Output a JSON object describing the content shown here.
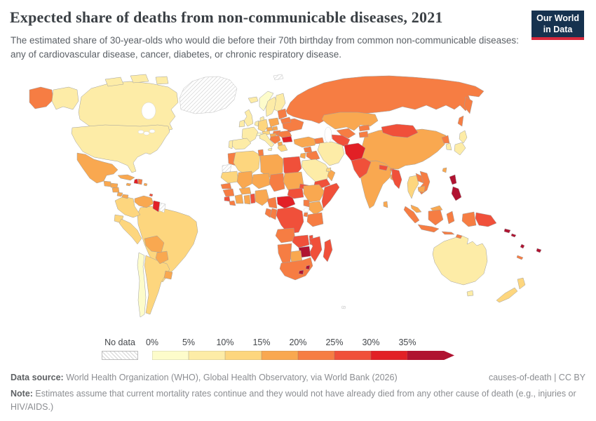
{
  "header": {
    "title": "Expected share of deaths from non-communicable diseases, 2021",
    "logo": [
      "Our World",
      "in Data"
    ],
    "brand_navy": "#16324f",
    "brand_red": "#d8293c"
  },
  "subtitle": "The estimated share of 30-year-olds who would die before their 70th birthday from common non-communicable diseases: any of cardiovascular disease, cancer, diabetes, or chronic respiratory disease.",
  "legend": {
    "no_data_label": "No data",
    "tick_labels": [
      "0%",
      "5%",
      "10%",
      "15%",
      "20%",
      "25%",
      "30%",
      "35%"
    ]
  },
  "footer": {
    "source_label": "Data source:",
    "source_text": " World Health Organization (WHO), Global Health Observatory, via World Bank (2026)",
    "attribution": "causes-of-death | CC BY",
    "note_label": "Note:",
    "note_text": " Estimates assume that current mortality rates continue and they would not have already died from any other cause of death (e.g., injuries or HIV/AIDS.)"
  },
  "chart_data": {
    "type": "choropleth-map",
    "title": "Expected share of deaths from non-communicable diseases, 2021",
    "unit": "%",
    "legend_position": "bottom",
    "no_data": {
      "label": "No data",
      "style": "diagonal-hatch"
    },
    "bins": [
      {
        "label": "0-5%",
        "color": "#fdfccb"
      },
      {
        "label": "5-10%",
        "color": "#fdeca7"
      },
      {
        "label": "10-15%",
        "color": "#fdd67e"
      },
      {
        "label": "15-20%",
        "color": "#f9a850"
      },
      {
        "label": "20-25%",
        "color": "#f67d43"
      },
      {
        "label": "25-30%",
        "color": "#f0503a"
      },
      {
        "label": "30-35%",
        "color": "#e22026"
      },
      {
        "label": "35%+",
        "color": "#b01331"
      }
    ],
    "countries": [
      {
        "name": "Russia",
        "bin": 4
      },
      {
        "name": "Canada",
        "bin": 1
      },
      {
        "name": "United States",
        "bin": 1
      },
      {
        "name": "Greenland",
        "bin": "no-data"
      },
      {
        "name": "Svalbard",
        "bin": "no-data"
      },
      {
        "name": "Brazil",
        "bin": 2
      },
      {
        "name": "China",
        "bin": 3
      },
      {
        "name": "Australia",
        "bin": 1
      },
      {
        "name": "India",
        "bin": 3
      },
      {
        "name": "Kazakhstan",
        "bin": 3
      },
      {
        "name": "Mexico",
        "bin": 3
      },
      {
        "name": "Argentina",
        "bin": 2
      },
      {
        "name": "Chile",
        "bin": 0
      },
      {
        "name": "Colombia",
        "bin": 2
      },
      {
        "name": "Venezuela",
        "bin": 3
      },
      {
        "name": "Guyana",
        "bin": 6
      },
      {
        "name": "Suriname",
        "bin": "no-data"
      },
      {
        "name": "Ecuador",
        "bin": 2
      },
      {
        "name": "Peru",
        "bin": 2
      },
      {
        "name": "Bolivia",
        "bin": 3
      },
      {
        "name": "Paraguay",
        "bin": 3
      },
      {
        "name": "Uruguay",
        "bin": 3
      },
      {
        "name": "Guatemala",
        "bin": 3
      },
      {
        "name": "Honduras",
        "bin": 3
      },
      {
        "name": "Nicaragua",
        "bin": 3
      },
      {
        "name": "Costa Rica",
        "bin": 3
      },
      {
        "name": "Panama",
        "bin": 3
      },
      {
        "name": "Cuba",
        "bin": 3
      },
      {
        "name": "Jamaica",
        "bin": 3
      },
      {
        "name": "Haiti",
        "bin": 6
      },
      {
        "name": "Dominican Republic",
        "bin": 4
      },
      {
        "name": "Puerto Rico",
        "bin": 3
      },
      {
        "name": "Trinidad and Tobago",
        "bin": 5
      },
      {
        "name": "Iceland",
        "bin": 1
      },
      {
        "name": "United Kingdom",
        "bin": 1
      },
      {
        "name": "Ireland",
        "bin": 1
      },
      {
        "name": "Norway",
        "bin": 0
      },
      {
        "name": "Sweden",
        "bin": 1
      },
      {
        "name": "Finland",
        "bin": 1
      },
      {
        "name": "Denmark",
        "bin": 1
      },
      {
        "name": "Netherlands",
        "bin": 1
      },
      {
        "name": "France",
        "bin": 1
      },
      {
        "name": "Switzerland",
        "bin": 0
      },
      {
        "name": "Germany",
        "bin": 2
      },
      {
        "name": "Austria",
        "bin": 2
      },
      {
        "name": "Czechia",
        "bin": 3
      },
      {
        "name": "Slovakia",
        "bin": 3
      },
      {
        "name": "Poland",
        "bin": 3
      },
      {
        "name": "Hungary",
        "bin": 4
      },
      {
        "name": "Italy",
        "bin": 1
      },
      {
        "name": "Spain",
        "bin": 1
      },
      {
        "name": "Portugal",
        "bin": 1
      },
      {
        "name": "Croatia",
        "bin": 3
      },
      {
        "name": "Serbia",
        "bin": 4
      },
      {
        "name": "Albania",
        "bin": 3
      },
      {
        "name": "Greece",
        "bin": 2
      },
      {
        "name": "Bulgaria",
        "bin": 6
      },
      {
        "name": "Romania",
        "bin": 4
      },
      {
        "name": "Moldova",
        "bin": 5
      },
      {
        "name": "Ukraine",
        "bin": 4
      },
      {
        "name": "Belarus",
        "bin": 4
      },
      {
        "name": "Lithuania",
        "bin": 4
      },
      {
        "name": "Turkey",
        "bin": 3
      },
      {
        "name": "Azerbaijan",
        "bin": 4
      },
      {
        "name": "Uzbekistan",
        "bin": 4
      },
      {
        "name": "Turkmenistan",
        "bin": 5
      },
      {
        "name": "Kyrgyzstan",
        "bin": 4
      },
      {
        "name": "Tajikistan",
        "bin": 4
      },
      {
        "name": "Mongolia",
        "bin": 5
      },
      {
        "name": "North Korea",
        "bin": 4
      },
      {
        "name": "South Korea",
        "bin": 1
      },
      {
        "name": "Japan",
        "bin": 1
      },
      {
        "name": "Taiwan",
        "bin": 3
      },
      {
        "name": "Iran",
        "bin": 1
      },
      {
        "name": "Iraq",
        "bin": 4
      },
      {
        "name": "Syria",
        "bin": 4
      },
      {
        "name": "Jordan",
        "bin": 3
      },
      {
        "name": "Saudi Arabia",
        "bin": 1
      },
      {
        "name": "Yemen",
        "bin": 5
      },
      {
        "name": "Oman",
        "bin": 3
      },
      {
        "name": "United Arab Emirates",
        "bin": 2
      },
      {
        "name": "Afghanistan",
        "bin": 6
      },
      {
        "name": "Pakistan",
        "bin": 5
      },
      {
        "name": "Nepal",
        "bin": 5
      },
      {
        "name": "Bhutan",
        "bin": 4
      },
      {
        "name": "Bangladesh",
        "bin": 3
      },
      {
        "name": "Sri Lanka",
        "bin": 3
      },
      {
        "name": "Myanmar",
        "bin": 5
      },
      {
        "name": "Thailand",
        "bin": 2
      },
      {
        "name": "Laos",
        "bin": 4
      },
      {
        "name": "Vietnam",
        "bin": 4
      },
      {
        "name": "Cambodia",
        "bin": 3
      },
      {
        "name": "Malaysia",
        "bin": 3
      },
      {
        "name": "Indonesia",
        "bin": 4
      },
      {
        "name": "Timor-Leste",
        "bin": 4
      },
      {
        "name": "Philippines",
        "bin": 7
      },
      {
        "name": "Papua New Guinea",
        "bin": 5
      },
      {
        "name": "New Zealand",
        "bin": 2
      },
      {
        "name": "New Caledonia",
        "bin": 4
      },
      {
        "name": "Solomon Islands",
        "bin": 7
      },
      {
        "name": "Vanuatu",
        "bin": 7
      },
      {
        "name": "Fiji",
        "bin": 7
      },
      {
        "name": "Morocco",
        "bin": 4
      },
      {
        "name": "Western Sahara",
        "bin": "no-data"
      },
      {
        "name": "Algeria",
        "bin": 2
      },
      {
        "name": "Tunisia",
        "bin": 4
      },
      {
        "name": "Libya",
        "bin": 3
      },
      {
        "name": "Egypt",
        "bin": 5
      },
      {
        "name": "Mauritania",
        "bin": 2
      },
      {
        "name": "Mali",
        "bin": 3
      },
      {
        "name": "Niger",
        "bin": 3
      },
      {
        "name": "Chad",
        "bin": 4
      },
      {
        "name": "Sudan",
        "bin": 3
      },
      {
        "name": "Eritrea",
        "bin": 5
      },
      {
        "name": "Senegal",
        "bin": 4
      },
      {
        "name": "Guinea",
        "bin": 4
      },
      {
        "name": "Sierra Leone",
        "bin": 5
      },
      {
        "name": "Liberia",
        "bin": 4
      },
      {
        "name": "Ivory Coast",
        "bin": 3
      },
      {
        "name": "Ghana",
        "bin": 3
      },
      {
        "name": "Togo",
        "bin": 5
      },
      {
        "name": "Burkina Faso",
        "bin": 3
      },
      {
        "name": "Nigeria",
        "bin": 3
      },
      {
        "name": "Cameroon",
        "bin": 4
      },
      {
        "name": "Central African Republic",
        "bin": 6
      },
      {
        "name": "South Sudan",
        "bin": 5
      },
      {
        "name": "Ethiopia",
        "bin": 3
      },
      {
        "name": "Somalia",
        "bin": 5
      },
      {
        "name": "Kenya",
        "bin": 3
      },
      {
        "name": "Uganda",
        "bin": 4
      },
      {
        "name": "Rwanda",
        "bin": 4
      },
      {
        "name": "Democratic Republic of Congo",
        "bin": 5
      },
      {
        "name": "Congo",
        "bin": 4
      },
      {
        "name": "Gabon",
        "bin": 4
      },
      {
        "name": "Tanzania",
        "bin": 4
      },
      {
        "name": "Angola",
        "bin": 4
      },
      {
        "name": "Zambia",
        "bin": 5
      },
      {
        "name": "Malawi",
        "bin": 5
      },
      {
        "name": "Mozambique",
        "bin": 5
      },
      {
        "name": "Zimbabwe",
        "bin": 7
      },
      {
        "name": "Botswana",
        "bin": 3
      },
      {
        "name": "Namibia",
        "bin": 4
      },
      {
        "name": "South Africa",
        "bin": 4
      },
      {
        "name": "Lesotho",
        "bin": 7
      },
      {
        "name": "Eswatini",
        "bin": 7
      },
      {
        "name": "Madagascar",
        "bin": 5
      },
      {
        "name": "French Southern Territories",
        "bin": "no-data"
      }
    ]
  }
}
